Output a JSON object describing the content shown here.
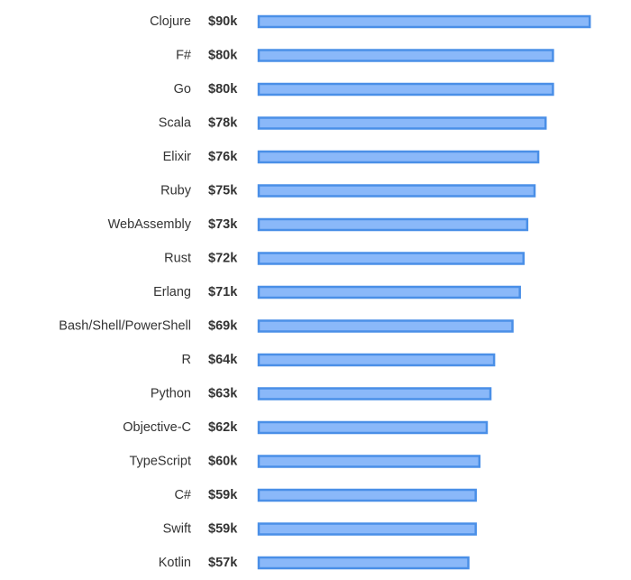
{
  "chart_data": {
    "type": "bar",
    "orientation": "horizontal",
    "categories": [
      "Clojure",
      "F#",
      "Go",
      "Scala",
      "Elixir",
      "Ruby",
      "WebAssembly",
      "Rust",
      "Erlang",
      "Bash/Shell/PowerShell",
      "R",
      "Python",
      "Objective-C",
      "TypeScript",
      "C#",
      "Swift",
      "Kotlin"
    ],
    "values": [
      90,
      80,
      80,
      78,
      76,
      75,
      73,
      72,
      71,
      69,
      64,
      63,
      62,
      60,
      59,
      59,
      57
    ],
    "value_labels": [
      "$90k",
      "$80k",
      "$80k",
      "$78k",
      "$76k",
      "$75k",
      "$73k",
      "$72k",
      "$71k",
      "$69k",
      "$64k",
      "$63k",
      "$62k",
      "$60k",
      "$59k",
      "$59k",
      "$57k"
    ],
    "title": "",
    "xlabel": "",
    "ylabel": "",
    "grid": false,
    "legend": "none",
    "colors": {
      "bar_fill": "#8ab8f9",
      "bar_stroke": "#4a8fe7",
      "text": "#333333"
    }
  }
}
